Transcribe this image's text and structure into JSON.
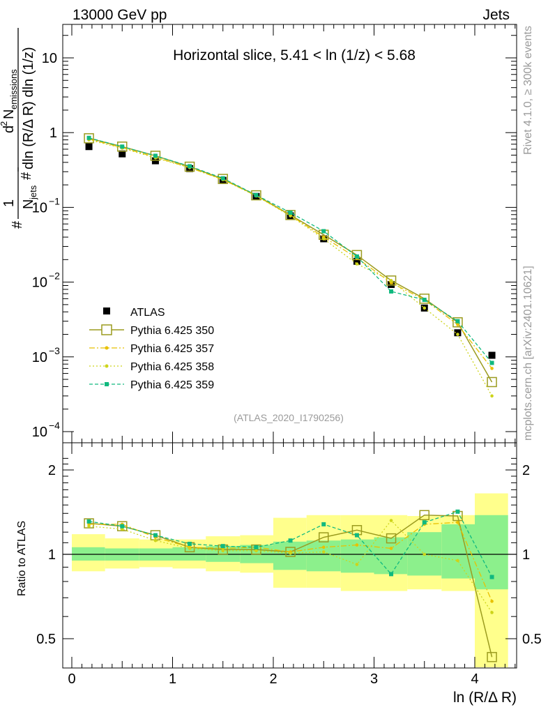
{
  "header": {
    "left": "13000 GeV pp",
    "right": "Jets"
  },
  "side_text": {
    "top": "Rivet 4.1.0, ≥ 300k events",
    "bottom": "mcplots.cern.ch [arXiv:2401.10621]"
  },
  "watermark": "(ATLAS_2020_I1790256)",
  "colors": {
    "atlas": "#000000",
    "p350": "#9b9b1f",
    "p357": "#e8c100",
    "p358": "#cdd41a",
    "p359": "#10b97f",
    "band_outer": "#ffff8c",
    "band_inner": "#8cf08c"
  },
  "chart_data": [
    {
      "type": "scatter",
      "scale": "log",
      "title": "Horizontal slice, 5.41 < ln (1/z) < 5.68",
      "ylabel": "1/N_jets d²N_emissions / dln(R/ΔR) dln(1/z)",
      "ylabel_parts": {
        "prefix": "#",
        "num": "1",
        "hash": "#",
        "nsub": "jets",
        "d2": "d",
        "sup": "2",
        "N": "N",
        "esub": "emissions",
        "den": "dln (R/Δ R) dln (1/z)"
      },
      "xlim": [
        -0.1,
        4.42
      ],
      "ylim": [
        0.0001,
        30
      ],
      "yticks": [
        {
          "value": 10,
          "label": "10"
        },
        {
          "value": 1,
          "label": "1"
        },
        {
          "value": 0.1,
          "base": "10",
          "exp": "−1"
        },
        {
          "value": 0.01,
          "base": "10",
          "exp": "−2"
        },
        {
          "value": 0.001,
          "base": "10",
          "exp": "−3"
        },
        {
          "value": 0.0001,
          "base": "10",
          "exp": "−4"
        }
      ],
      "x": [
        0.17,
        0.5,
        0.83,
        1.17,
        1.5,
        1.83,
        2.17,
        2.5,
        2.83,
        3.17,
        3.5,
        3.83,
        4.17
      ],
      "series": [
        {
          "name": "ATLAS",
          "key": "atlas",
          "marker": "filled-square",
          "line": "none",
          "values": [
            0.65,
            0.52,
            0.42,
            0.33,
            0.23,
            0.14,
            0.077,
            0.038,
            0.019,
            0.0093,
            0.0045,
            0.0021,
            0.00105
          ]
        },
        {
          "name": "Pythia 6.425 350",
          "key": "p350",
          "marker": "open-square",
          "line": "solid",
          "values": [
            0.84,
            0.65,
            0.49,
            0.35,
            0.24,
            0.145,
            0.079,
            0.043,
            0.023,
            0.0105,
            0.006,
            0.0029,
            0.00046
          ]
        },
        {
          "name": "Pythia 6.425 357",
          "key": "p357",
          "marker": "small-dot",
          "line": "dashdot",
          "values": [
            0.82,
            0.63,
            0.47,
            0.34,
            0.235,
            0.143,
            0.078,
            0.04,
            0.021,
            0.0098,
            0.0058,
            0.0027,
            0.0007
          ]
        },
        {
          "name": "Pythia 6.425 358",
          "key": "p358",
          "marker": "small-dot",
          "line": "dotted",
          "values": [
            0.8,
            0.62,
            0.46,
            0.34,
            0.235,
            0.142,
            0.077,
            0.038,
            0.0175,
            0.0105,
            0.0045,
            0.002,
            0.0003
          ]
        },
        {
          "name": "Pythia 6.425 359",
          "key": "p359",
          "marker": "small-square",
          "line": "dashed",
          "values": [
            0.85,
            0.65,
            0.49,
            0.355,
            0.245,
            0.146,
            0.085,
            0.048,
            0.022,
            0.0075,
            0.0058,
            0.003,
            0.00083
          ]
        }
      ]
    },
    {
      "type": "scatter",
      "scale": "log",
      "xlabel": "ln (R/Δ R)",
      "ylabel": "Ratio to ATLAS",
      "xlim": [
        -0.1,
        4.42
      ],
      "ylim": [
        0.4,
        2.3
      ],
      "yticks": [
        {
          "value": 2,
          "label": "2"
        },
        {
          "value": 1,
          "label": "1"
        },
        {
          "value": 0.5,
          "label": "0.5"
        }
      ],
      "xticks": [
        {
          "value": 0,
          "label": "0"
        },
        {
          "value": 1,
          "label": "1"
        },
        {
          "value": 2,
          "label": "2"
        },
        {
          "value": 3,
          "label": "3"
        },
        {
          "value": 4,
          "label": "4"
        }
      ],
      "bins": [
        [
          0.0,
          0.33
        ],
        [
          0.33,
          0.67
        ],
        [
          0.67,
          1.0
        ],
        [
          1.0,
          1.33
        ],
        [
          1.33,
          1.67
        ],
        [
          1.67,
          2.0
        ],
        [
          2.0,
          2.33
        ],
        [
          2.33,
          2.67
        ],
        [
          2.67,
          3.0
        ],
        [
          3.0,
          3.33
        ],
        [
          3.33,
          3.67
        ],
        [
          3.67,
          4.0
        ],
        [
          4.0,
          4.33
        ]
      ],
      "band_outer": [
        [
          0.87,
          1.18
        ],
        [
          0.89,
          1.14
        ],
        [
          0.9,
          1.13
        ],
        [
          0.89,
          1.13
        ],
        [
          0.87,
          1.16
        ],
        [
          0.86,
          1.17
        ],
        [
          0.76,
          1.35
        ],
        [
          0.76,
          1.38
        ],
        [
          0.74,
          1.38
        ],
        [
          0.74,
          1.38
        ],
        [
          0.75,
          1.37
        ],
        [
          0.74,
          1.38
        ],
        [
          0.38,
          1.65
        ]
      ],
      "band_inner": [
        [
          0.95,
          1.06
        ],
        [
          0.95,
          1.05
        ],
        [
          0.95,
          1.05
        ],
        [
          0.95,
          1.06
        ],
        [
          0.94,
          1.07
        ],
        [
          0.93,
          1.08
        ],
        [
          0.88,
          1.11
        ],
        [
          0.87,
          1.12
        ],
        [
          0.86,
          1.13
        ],
        [
          0.85,
          1.15
        ],
        [
          0.84,
          1.2
        ],
        [
          0.82,
          1.28
        ],
        [
          0.75,
          1.38
        ]
      ],
      "series": [
        {
          "key": "p350",
          "values": [
            1.29,
            1.26,
            1.17,
            1.06,
            1.04,
            1.04,
            1.02,
            1.15,
            1.22,
            1.14,
            1.38,
            1.37,
            0.43
          ]
        },
        {
          "key": "p357",
          "values": [
            1.28,
            1.28,
            1.15,
            1.06,
            1.05,
            1.06,
            1.02,
            1.06,
            1.08,
            1.05,
            1.28,
            1.3,
            0.68
          ]
        },
        {
          "key": "p358",
          "values": [
            1.26,
            1.23,
            1.12,
            1.05,
            1.03,
            1.03,
            1.01,
            1.02,
            0.92,
            1.32,
            1.0,
            0.95,
            0.62
          ]
        },
        {
          "key": "p359",
          "values": [
            1.31,
            1.26,
            1.17,
            1.09,
            1.07,
            1.06,
            1.12,
            1.28,
            1.17,
            0.85,
            1.3,
            1.42,
            0.83
          ]
        }
      ]
    }
  ]
}
